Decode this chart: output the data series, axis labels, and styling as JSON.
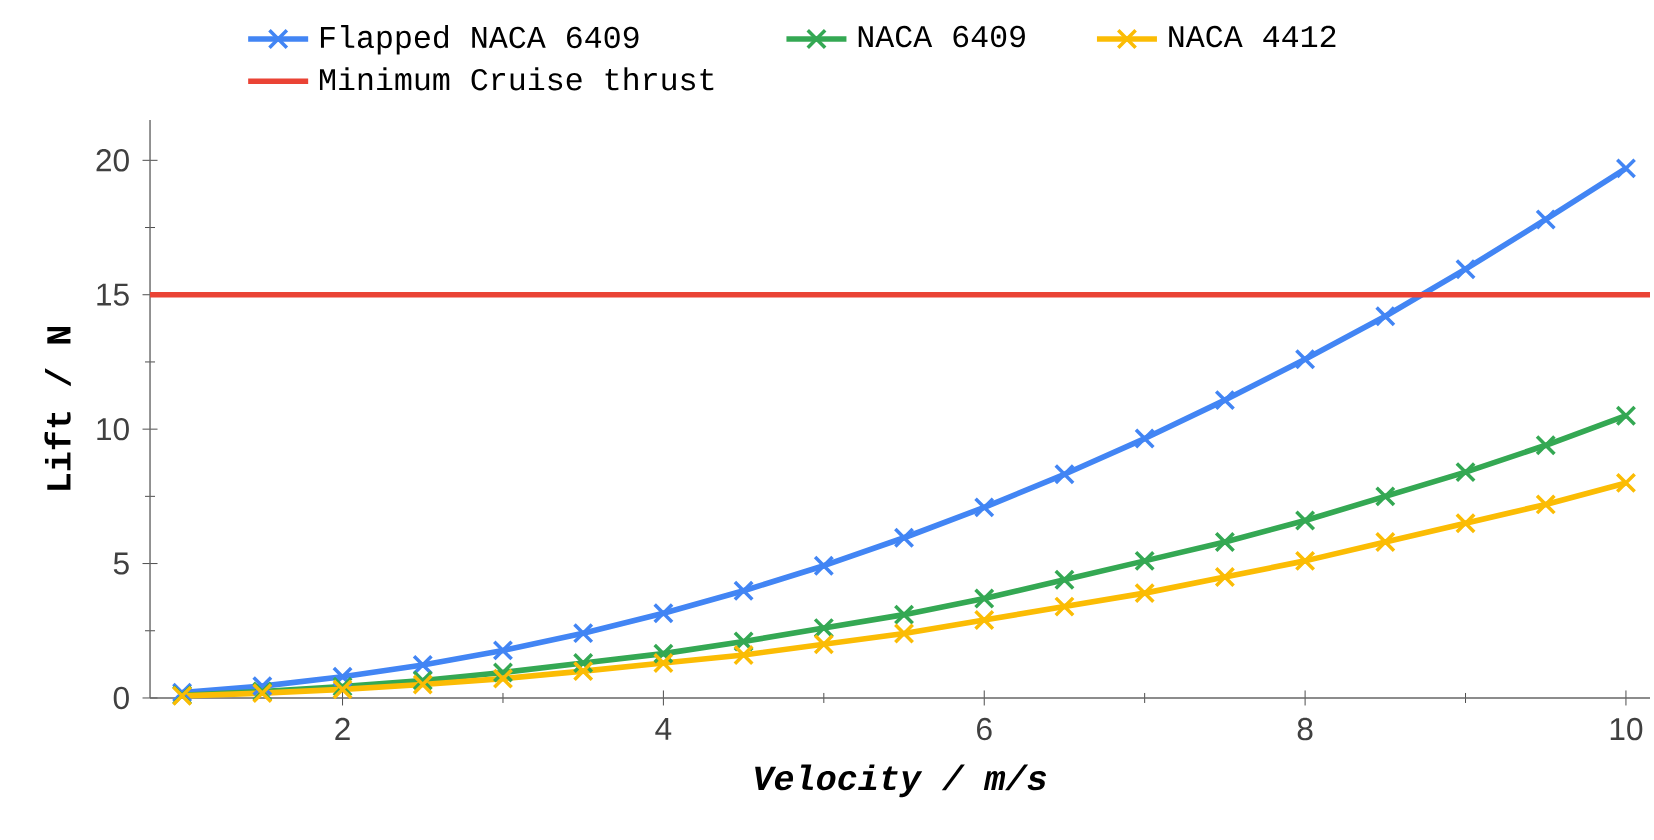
{
  "chart_data": {
    "type": "line",
    "xlabel": "Velocity / m/s",
    "ylabel": "Lift / N",
    "x": [
      1,
      1.5,
      2,
      2.5,
      3,
      3.5,
      4,
      4.5,
      5,
      5.5,
      6,
      6.5,
      7,
      7.5,
      8,
      8.5,
      9,
      9.5,
      10
    ],
    "series": [
      {
        "name": "Flapped NACA 6409",
        "color": "#4285f4",
        "values": [
          0.2,
          0.44,
          0.79,
          1.23,
          1.77,
          2.41,
          3.15,
          3.99,
          4.92,
          5.96,
          7.09,
          8.32,
          9.65,
          11.08,
          12.6,
          14.2,
          15.95,
          17.8,
          19.7
        ]
      },
      {
        "name": "NACA 6409",
        "color": "#34a853",
        "values": [
          0.1,
          0.24,
          0.42,
          0.65,
          0.95,
          1.3,
          1.65,
          2.1,
          2.6,
          3.1,
          3.7,
          4.4,
          5.1,
          5.8,
          6.6,
          7.5,
          8.4,
          9.4,
          10.5
        ]
      },
      {
        "name": "NACA 4412",
        "color": "#fbbc04",
        "values": [
          0.08,
          0.18,
          0.32,
          0.5,
          0.72,
          1.0,
          1.3,
          1.6,
          2.0,
          2.4,
          2.9,
          3.4,
          3.9,
          4.5,
          5.1,
          5.8,
          6.5,
          7.2,
          8.0
        ]
      }
    ],
    "marker": "cross",
    "line_style": "solid",
    "legend": "top",
    "xlim": [
      0.8,
      10.15
    ],
    "xticks": [
      2,
      4,
      6,
      8,
      10
    ],
    "ylim": [
      0,
      21.5
    ],
    "yticks": [
      0,
      5,
      10,
      15,
      20
    ],
    "ref_lines": [
      {
        "axis": "y",
        "value": 15,
        "label": "Minimum Cruise thrust",
        "color": "#ea4335"
      }
    ]
  }
}
